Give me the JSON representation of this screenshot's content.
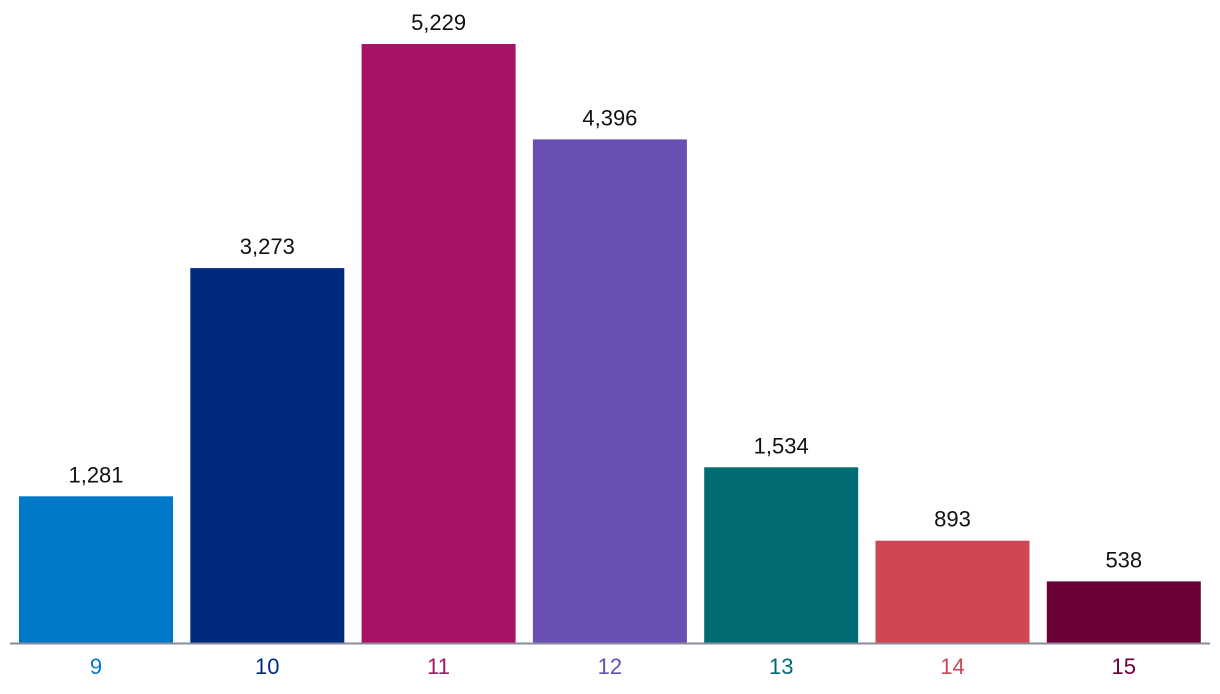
{
  "chart_data": {
    "type": "bar",
    "title": "",
    "xlabel": "",
    "ylabel": "",
    "categories": [
      "9",
      "10",
      "11",
      "12",
      "13",
      "14",
      "15"
    ],
    "values": [
      1281,
      3273,
      5229,
      4396,
      1534,
      893,
      538
    ],
    "value_labels": [
      "1,281",
      "3,273",
      "5,229",
      "4,396",
      "1,534",
      "893",
      "538"
    ],
    "colors": [
      "#0079C7",
      "#002A7E",
      "#A61366",
      "#6A4FB3",
      "#006B73",
      "#D04651",
      "#6A0036"
    ],
    "ylim": [
      0,
      5229
    ],
    "grid": false,
    "legend": "none",
    "axis_color": "#8A8A9A"
  }
}
